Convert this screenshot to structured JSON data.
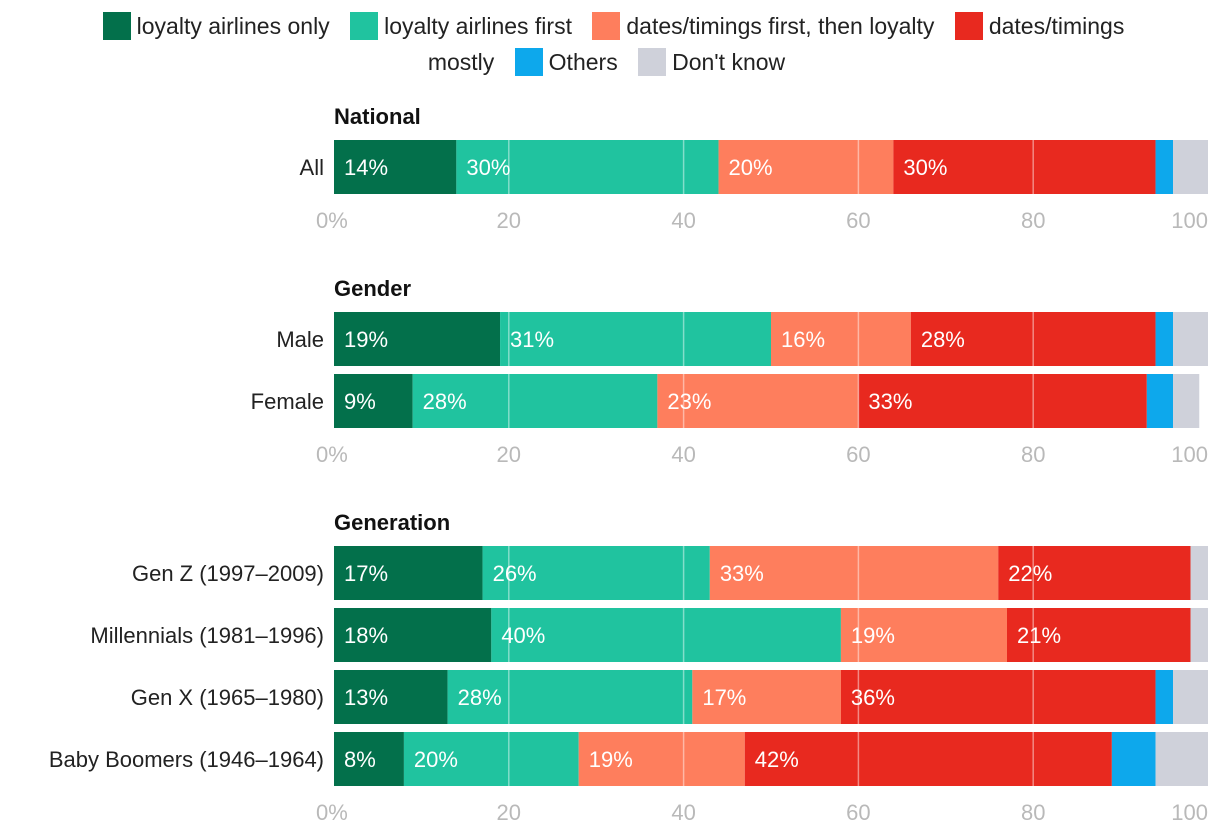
{
  "chart_data": {
    "type": "bar",
    "orientation": "horizontal",
    "stacked": true,
    "xlim": [
      0,
      100
    ],
    "xticks": [
      "0%",
      "20",
      "40",
      "60",
      "80",
      "100"
    ],
    "legend_position": "top",
    "legend": [
      {
        "name": "loyalty airlines only",
        "color": "#03704b"
      },
      {
        "name": "loyalty airlines first",
        "color": "#20c39f"
      },
      {
        "name": "dates/timings first, then loyalty",
        "color": "#fe7e5d"
      },
      {
        "name": "dates/timings mostly",
        "color": "#e8291f"
      },
      {
        "name": "Others",
        "color": "#0da8ec"
      },
      {
        "name": "Don't know",
        "color": "#cfd1da"
      }
    ],
    "groups": [
      {
        "title": "National",
        "rows": [
          {
            "label": "All",
            "values": [
              14,
              30,
              20,
              30,
              2,
              4
            ],
            "labels": [
              "14%",
              "30%",
              "20%",
              "30%",
              "",
              ""
            ]
          }
        ]
      },
      {
        "title": "Gender",
        "rows": [
          {
            "label": "Male",
            "values": [
              19,
              31,
              16,
              28,
              2,
              5
            ],
            "labels": [
              "19%",
              "31%",
              "16%",
              "28%",
              "",
              ""
            ]
          },
          {
            "label": "Female",
            "values": [
              9,
              28,
              23,
              33,
              3,
              3
            ],
            "labels": [
              "9%",
              "28%",
              "23%",
              "33%",
              "",
              ""
            ]
          }
        ]
      },
      {
        "title": "Generation",
        "rows": [
          {
            "label": "Gen Z (1997–2009)",
            "values": [
              17,
              26,
              33,
              22,
              0,
              2
            ],
            "labels": [
              "17%",
              "26%",
              "33%",
              "22%",
              "",
              ""
            ]
          },
          {
            "label": "Millennials (1981–1996)",
            "values": [
              18,
              40,
              19,
              21,
              0,
              2
            ],
            "labels": [
              "18%",
              "40%",
              "19%",
              "21%",
              "",
              ""
            ]
          },
          {
            "label": "Gen X (1965–1980)",
            "values": [
              13,
              28,
              17,
              36,
              2,
              4
            ],
            "labels": [
              "13%",
              "28%",
              "17%",
              "36%",
              "",
              ""
            ]
          },
          {
            "label": "Baby Boomers (1946–1964)",
            "values": [
              8,
              20,
              19,
              42,
              5,
              6
            ],
            "labels": [
              "8%",
              "20%",
              "19%",
              "42%",
              "",
              ""
            ]
          }
        ]
      }
    ]
  }
}
